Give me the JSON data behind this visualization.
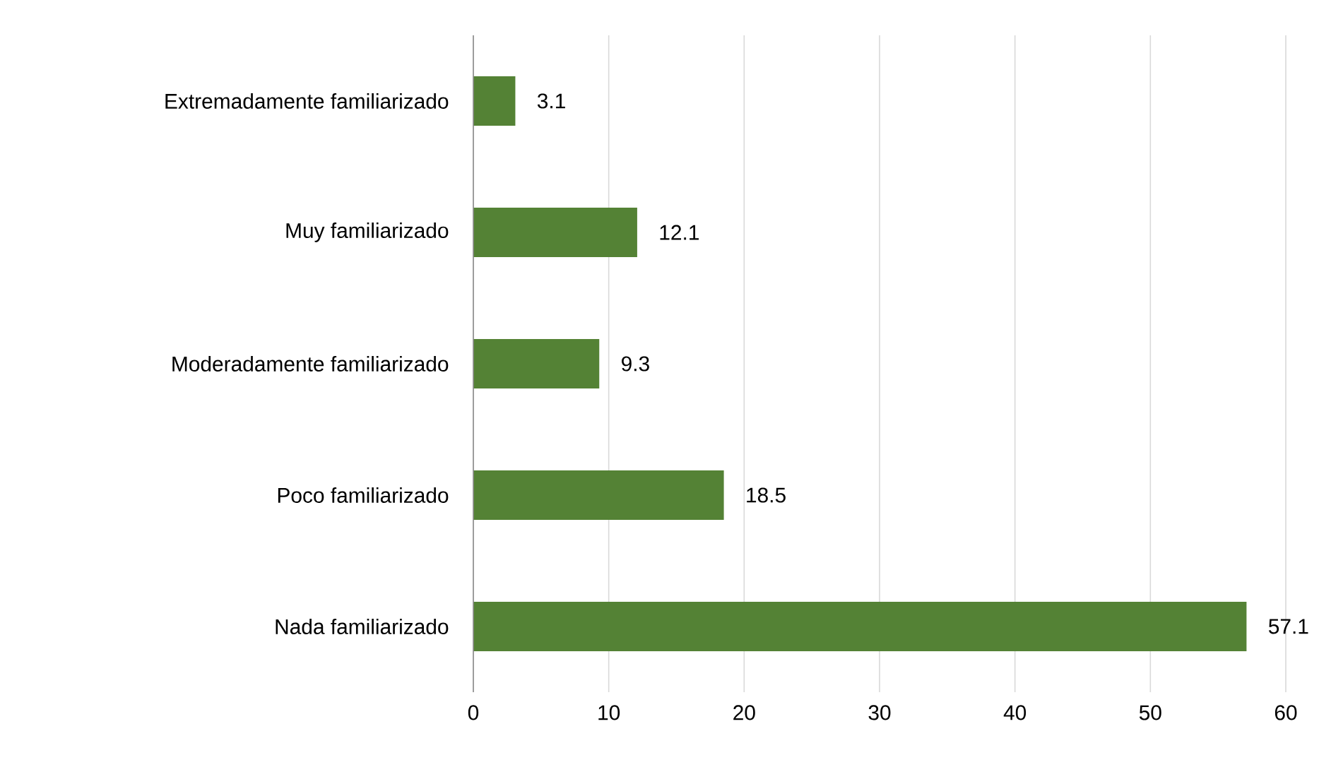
{
  "chart_data": {
    "type": "bar",
    "orientation": "horizontal",
    "categories": [
      "Extremadamente familiarizado",
      "Muy familiarizado",
      "Moderadamente familiarizado",
      "Poco familiarizado",
      "Nada familiarizado"
    ],
    "values": [
      3.1,
      12.1,
      9.3,
      18.5,
      57.1
    ],
    "color": "#548235",
    "xlim": [
      0,
      60
    ],
    "xticks": [
      0,
      10,
      20,
      30,
      40,
      50,
      60
    ],
    "grid": "x",
    "data_labels": true
  }
}
